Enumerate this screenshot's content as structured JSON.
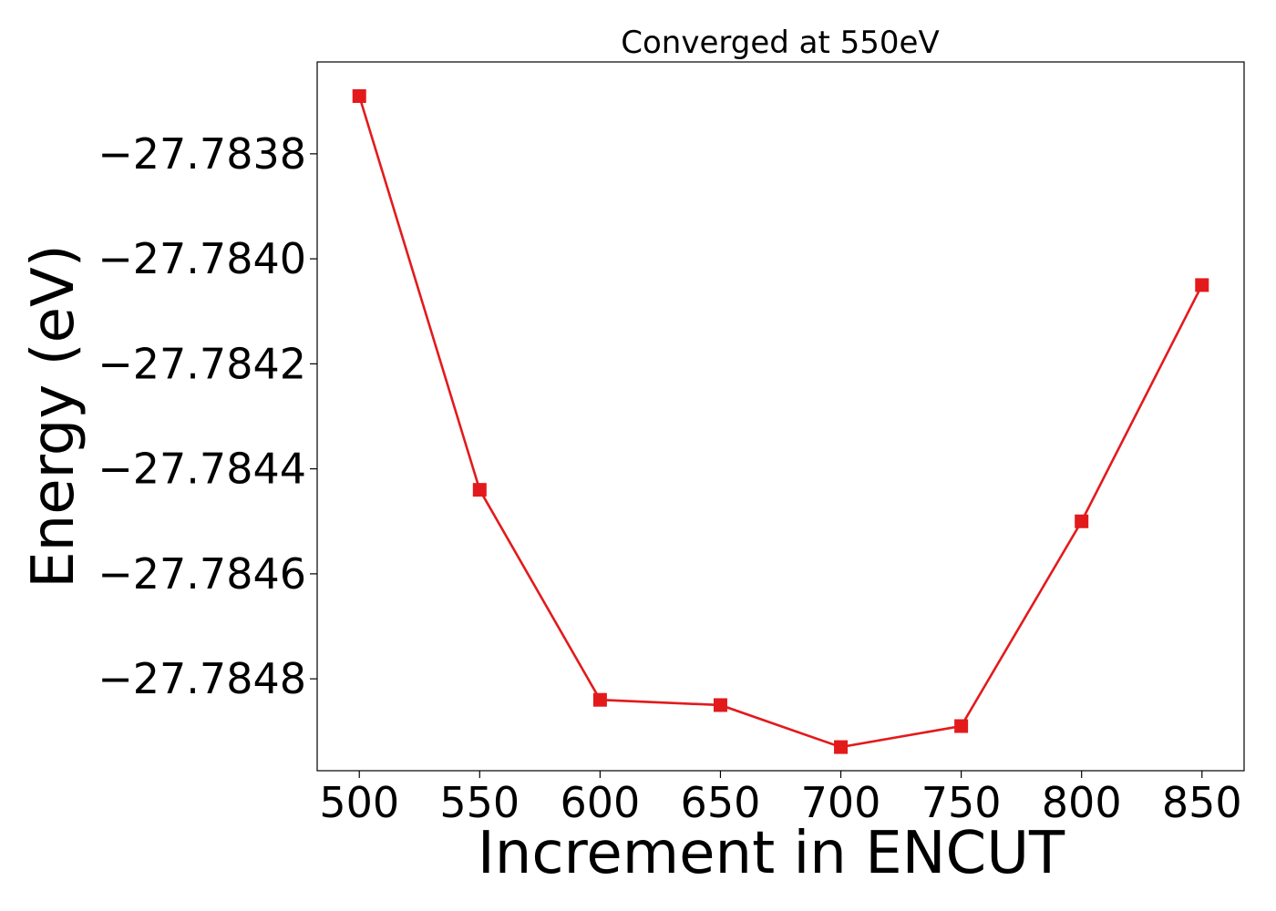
{
  "chart_data": {
    "type": "line",
    "title": "Converged at 550eV",
    "xlabel": "Increment in ENCUT",
    "ylabel": "Energy (eV)",
    "x": [
      500,
      550,
      600,
      650,
      700,
      750,
      800,
      850
    ],
    "series": [
      {
        "values": [
          -27.78369,
          -27.78444,
          -27.78484,
          -27.78485,
          -27.78493,
          -27.78489,
          -27.7845,
          -27.78405
        ],
        "color": "#e31a1c",
        "marker": "square"
      }
    ],
    "xticks": [
      500,
      550,
      600,
      650,
      700,
      750,
      800,
      850
    ],
    "xtick_labels": [
      "500",
      "550",
      "600",
      "650",
      "700",
      "750",
      "800",
      "850"
    ],
    "yticks": [
      -27.7838,
      -27.784,
      -27.7842,
      -27.7844,
      -27.7846,
      -27.7848
    ],
    "ytick_labels": [
      "−27.7838",
      "−27.7840",
      "−27.7842",
      "−27.7844",
      "−27.7846",
      "−27.7848"
    ],
    "xlim": [
      482.5,
      867.5
    ],
    "ylim": [
      -27.784975,
      -27.783625
    ],
    "grid": false,
    "legend": "none"
  }
}
